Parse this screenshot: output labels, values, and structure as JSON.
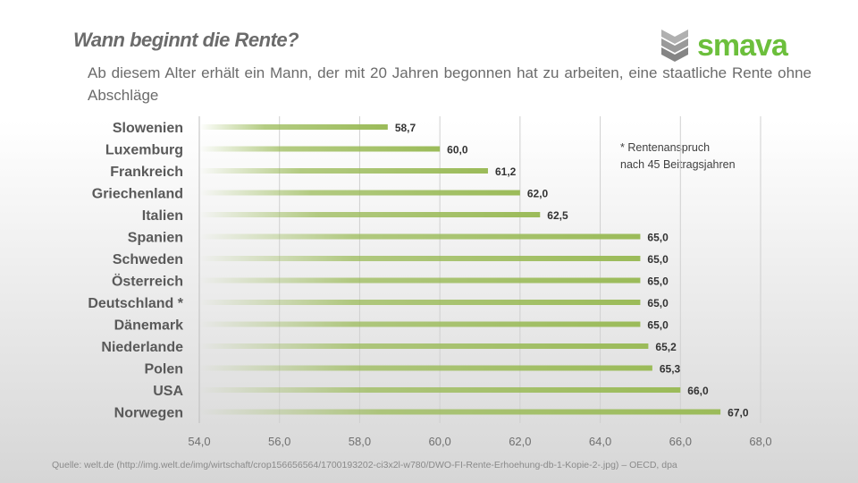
{
  "title": "Wann beginnt die Rente?",
  "subtitle": "Ab diesem Alter erhält ein Mann, der mit 20 Jahren begonnen hat zu arbeiten, eine staatliche Rente ohne Abschläge",
  "logo": "smava",
  "note_lines": [
    "* Rentenanspruch",
    "nach 45 Beitragsjahren"
  ],
  "source": "Quelle: welt.de (http://img.welt.de/img/wirtschaft/crop156656564/1700193202-ci3x2l-w780/DWO-FI-Rente-Erhoehung-db-1-Kopie-2-.jpg) – OECD, dpa",
  "chart_data": {
    "type": "bar",
    "orientation": "horizontal",
    "categories": [
      "Slowenien",
      "Luxemburg",
      "Frankreich",
      "Griechenland",
      "Italien",
      "Spanien",
      "Schweden",
      "Österreich",
      "Deutschland *",
      "Dänemark",
      "Niederlande",
      "Polen",
      "USA",
      "Norwegen"
    ],
    "values": [
      58.7,
      60.0,
      61.2,
      62.0,
      62.5,
      65.0,
      65.0,
      65.0,
      65.0,
      65.0,
      65.2,
      65.3,
      66.0,
      67.0
    ],
    "value_labels": [
      "58,7",
      "60,0",
      "61,2",
      "62,0",
      "62,5",
      "65,0",
      "65,0",
      "65,0",
      "65,0",
      "65,0",
      "65,2",
      "65,3",
      "66,0",
      "67,0"
    ],
    "xlim": [
      54,
      68
    ],
    "x_ticks": [
      "54,0",
      "56,0",
      "58,0",
      "60,0",
      "62,0",
      "64,0",
      "66,0",
      "68,0"
    ],
    "grid": true,
    "bar_color": "#9bbb59"
  }
}
